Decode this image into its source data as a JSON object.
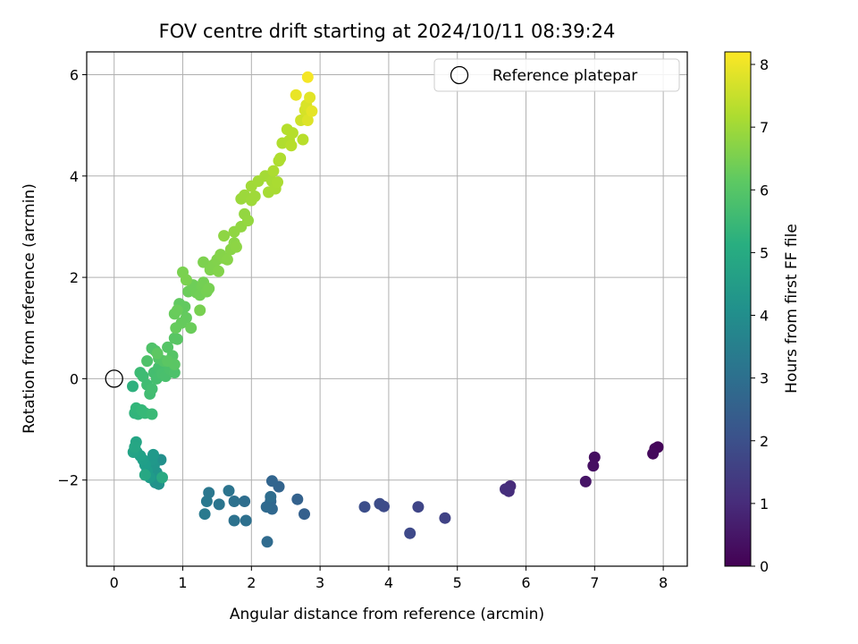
{
  "chart_data": {
    "type": "scatter",
    "title": "FOV centre drift starting at 2024/10/11 08:39:24",
    "xlabel": "Angular distance from reference (arcmin)",
    "ylabel": "Rotation from reference (arcmin)",
    "xlim": [
      -0.4,
      8.35
    ],
    "ylim": [
      -3.7,
      6.45
    ],
    "xticks": [
      0,
      1,
      2,
      3,
      4,
      5,
      6,
      7,
      8
    ],
    "yticks": [
      -2,
      0,
      2,
      4,
      6
    ],
    "grid": true,
    "legend": {
      "placement": "top-right",
      "label": "Reference platepar"
    },
    "reference_point": {
      "x": 0,
      "y": 0
    },
    "colorbar": {
      "label": "Hours from first FF file",
      "colormap": "viridis",
      "range": [
        0,
        8.2
      ],
      "ticks": [
        0,
        1,
        2,
        3,
        4,
        5,
        6,
        7,
        8
      ]
    },
    "series": [
      {
        "points": [
          [
            7.92,
            -1.35,
            0.1
          ],
          [
            7.88,
            -1.38,
            0.15
          ],
          [
            7.85,
            -1.48,
            0.2
          ],
          [
            7.0,
            -1.55,
            0.3
          ],
          [
            6.98,
            -1.72,
            0.35
          ],
          [
            6.87,
            -2.03,
            0.45
          ],
          [
            5.77,
            -2.12,
            1.0
          ],
          [
            5.75,
            -2.22,
            1.05
          ],
          [
            5.7,
            -2.18,
            1.1
          ],
          [
            4.82,
            -2.75,
            1.6
          ],
          [
            4.43,
            -2.53,
            1.7
          ],
          [
            4.31,
            -3.05,
            1.8
          ],
          [
            3.93,
            -2.52,
            1.85
          ],
          [
            3.87,
            -2.47,
            1.9
          ],
          [
            3.65,
            -2.53,
            1.95
          ],
          [
            2.77,
            -2.67,
            2.5
          ],
          [
            2.67,
            -2.38,
            2.55
          ],
          [
            2.4,
            -2.13,
            2.6
          ],
          [
            2.3,
            -2.02,
            2.65
          ],
          [
            2.28,
            -2.42,
            2.7
          ],
          [
            2.3,
            -2.57,
            2.75
          ],
          [
            2.22,
            -2.53,
            2.8
          ],
          [
            2.23,
            -3.22,
            2.85
          ],
          [
            2.28,
            -2.33,
            2.9
          ],
          [
            1.9,
            -2.42,
            2.95
          ],
          [
            1.92,
            -2.8,
            3.0
          ],
          [
            1.75,
            -2.42,
            3.05
          ],
          [
            1.75,
            -2.8,
            3.1
          ],
          [
            1.67,
            -2.21,
            3.15
          ],
          [
            1.53,
            -2.48,
            3.2
          ],
          [
            1.38,
            -2.25,
            3.25
          ],
          [
            1.35,
            -2.42,
            3.3
          ],
          [
            1.32,
            -2.67,
            3.35
          ],
          [
            0.68,
            -1.6,
            4.1
          ],
          [
            0.65,
            -2.08,
            4.15
          ],
          [
            0.6,
            -2.05,
            4.2
          ],
          [
            0.62,
            -1.85,
            4.25
          ],
          [
            0.58,
            -1.72,
            4.3
          ],
          [
            0.55,
            -1.6,
            4.35
          ],
          [
            0.57,
            -1.5,
            4.4
          ],
          [
            0.52,
            -1.95,
            4.45
          ],
          [
            0.48,
            -1.82,
            4.5
          ],
          [
            0.45,
            -1.7,
            4.55
          ],
          [
            0.42,
            -1.6,
            4.6
          ],
          [
            0.38,
            -1.52,
            4.65
          ],
          [
            0.33,
            -1.45,
            4.7
          ],
          [
            0.28,
            -1.45,
            4.75
          ],
          [
            0.32,
            -1.25,
            4.8
          ],
          [
            0.3,
            -1.35,
            4.85
          ],
          [
            0.45,
            -1.9,
            4.9
          ],
          [
            0.7,
            -1.95,
            4.95
          ],
          [
            0.27,
            -0.15,
            5.2
          ],
          [
            0.3,
            -0.68,
            5.3
          ],
          [
            0.35,
            -0.7,
            5.35
          ],
          [
            0.32,
            -0.58,
            5.4
          ],
          [
            0.4,
            -0.62,
            5.45
          ],
          [
            0.45,
            -0.68,
            5.5
          ],
          [
            0.55,
            -0.7,
            5.55
          ],
          [
            0.38,
            0.12,
            5.6
          ],
          [
            0.42,
            0.05,
            5.62
          ],
          [
            0.48,
            -0.12,
            5.65
          ],
          [
            0.52,
            -0.3,
            5.67
          ],
          [
            0.55,
            -0.2,
            5.7
          ],
          [
            0.58,
            0.12,
            5.72
          ],
          [
            0.62,
            0.0,
            5.74
          ],
          [
            0.65,
            0.22,
            5.76
          ],
          [
            0.7,
            0.1,
            5.78
          ],
          [
            0.75,
            0.05,
            5.8
          ],
          [
            0.8,
            0.2,
            5.82
          ],
          [
            0.82,
            0.18,
            5.84
          ],
          [
            0.88,
            0.12,
            5.86
          ],
          [
            0.48,
            0.35,
            5.88
          ],
          [
            0.55,
            0.6,
            5.9
          ],
          [
            0.6,
            0.55,
            5.92
          ],
          [
            0.65,
            0.4,
            5.94
          ],
          [
            0.72,
            0.35,
            5.96
          ],
          [
            0.78,
            0.62,
            5.98
          ],
          [
            0.85,
            0.45,
            6.0
          ],
          [
            0.88,
            0.8,
            6.02
          ],
          [
            0.92,
            0.78,
            6.04
          ],
          [
            0.88,
            0.28,
            6.06
          ],
          [
            0.78,
            0.35,
            6.08
          ],
          [
            0.63,
            0.5,
            6.1
          ],
          [
            1.0,
            1.38,
            6.15
          ],
          [
            0.95,
            1.48,
            6.17
          ],
          [
            1.03,
            1.42,
            6.19
          ],
          [
            1.05,
            1.2,
            6.21
          ],
          [
            0.98,
            1.1,
            6.23
          ],
          [
            0.9,
            1.0,
            6.25
          ],
          [
            0.88,
            1.28,
            6.27
          ],
          [
            0.92,
            1.35,
            6.29
          ],
          [
            1.12,
            1.0,
            6.31
          ],
          [
            1.08,
            1.72,
            6.33
          ],
          [
            1.12,
            1.75,
            6.35
          ],
          [
            1.15,
            1.85,
            6.37
          ],
          [
            1.2,
            1.7,
            6.39
          ],
          [
            1.25,
            1.65,
            6.41
          ],
          [
            1.28,
            1.82,
            6.43
          ],
          [
            1.3,
            1.9,
            6.45
          ],
          [
            1.35,
            1.72,
            6.47
          ],
          [
            1.38,
            1.78,
            6.49
          ],
          [
            1.25,
            1.35,
            6.51
          ],
          [
            1.0,
            2.1,
            6.53
          ],
          [
            1.05,
            1.95,
            6.55
          ],
          [
            1.3,
            2.3,
            6.57
          ],
          [
            1.4,
            2.15,
            6.59
          ],
          [
            1.45,
            2.25,
            6.61
          ],
          [
            1.5,
            2.35,
            6.63
          ],
          [
            1.52,
            2.12,
            6.65
          ],
          [
            1.55,
            2.45,
            6.67
          ],
          [
            1.6,
            2.38,
            6.69
          ],
          [
            1.65,
            2.35,
            6.71
          ],
          [
            1.7,
            2.55,
            6.73
          ],
          [
            1.75,
            2.68,
            6.75
          ],
          [
            1.78,
            2.6,
            6.77
          ],
          [
            1.6,
            2.82,
            6.79
          ],
          [
            1.75,
            2.9,
            6.81
          ],
          [
            1.85,
            3.0,
            6.83
          ],
          [
            1.9,
            3.25,
            6.85
          ],
          [
            1.95,
            3.12,
            6.87
          ],
          [
            1.85,
            3.55,
            6.95
          ],
          [
            1.9,
            3.62,
            6.97
          ],
          [
            2.0,
            3.52,
            6.99
          ],
          [
            2.05,
            3.6,
            7.01
          ],
          [
            2.0,
            3.8,
            7.03
          ],
          [
            2.1,
            3.9,
            7.05
          ],
          [
            2.2,
            4.0,
            7.07
          ],
          [
            2.25,
            3.68,
            7.09
          ],
          [
            2.3,
            3.9,
            7.11
          ],
          [
            2.35,
            3.75,
            7.13
          ],
          [
            2.38,
            3.88,
            7.15
          ],
          [
            2.32,
            4.1,
            7.17
          ],
          [
            2.4,
            4.3,
            7.19
          ],
          [
            2.42,
            4.35,
            7.21
          ],
          [
            2.45,
            4.65,
            7.23
          ],
          [
            2.55,
            4.7,
            7.25
          ],
          [
            2.52,
            4.92,
            7.27
          ],
          [
            2.6,
            4.85,
            7.29
          ],
          [
            2.58,
            4.6,
            7.31
          ],
          [
            2.75,
            4.72,
            7.33
          ],
          [
            2.72,
            5.1,
            7.6
          ],
          [
            2.78,
            5.3,
            7.7
          ],
          [
            2.8,
            5.4,
            7.75
          ],
          [
            2.82,
            5.1,
            7.8
          ],
          [
            2.85,
            5.55,
            7.85
          ],
          [
            2.88,
            5.28,
            7.9
          ],
          [
            2.65,
            5.6,
            7.95
          ],
          [
            2.82,
            5.95,
            8.1
          ]
        ]
      }
    ]
  }
}
